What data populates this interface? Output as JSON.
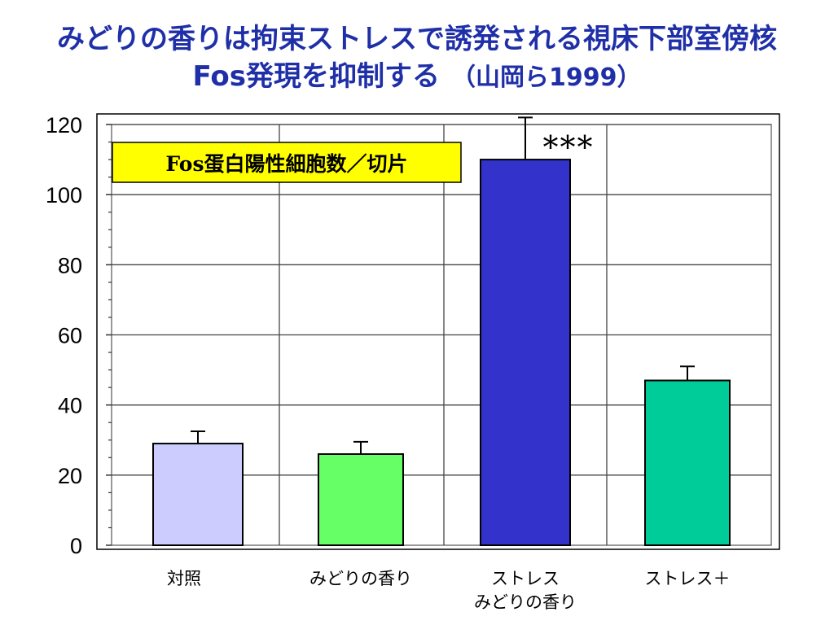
{
  "slide": {
    "title_line1": "みどりの香りは拘束ストレスで誘発される視床下部室傍核",
    "title_line2": "Fos発現を抑制する",
    "citation": "（山岡ら1999）"
  },
  "chart_data": {
    "type": "bar",
    "title": "Fos蛋白陽性細胞数／切片",
    "categories": [
      [
        "対照"
      ],
      [
        "みどりの香り"
      ],
      [
        "ストレス",
        "みどりの香り"
      ],
      [
        "ストレス＋"
      ]
    ],
    "values": [
      29,
      26,
      110,
      47
    ],
    "errors": [
      3.5,
      3.5,
      12,
      4
    ],
    "colors": [
      "#ccccff",
      "#66ff66",
      "#3333cc",
      "#00cc99"
    ],
    "significance": [
      "",
      "",
      "***",
      ""
    ],
    "ylim": [
      0,
      120
    ],
    "yticks": [
      0,
      20,
      40,
      60,
      80,
      100,
      120
    ],
    "grid": true,
    "legend_box_color": "#ffff00"
  }
}
